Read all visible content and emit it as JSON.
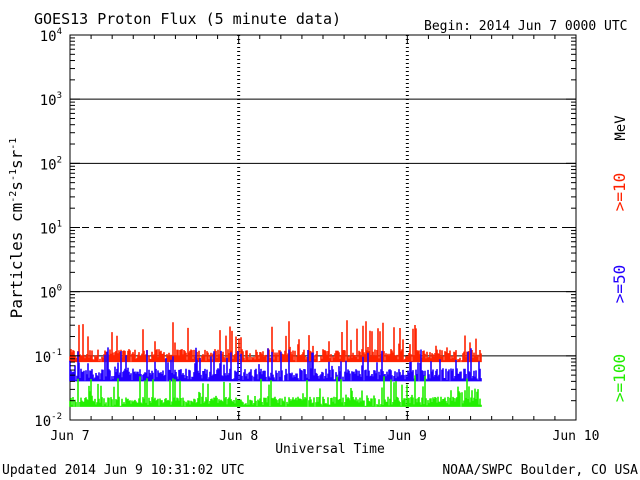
{
  "header": {
    "title": "GOES13 Proton Flux (5 minute data)",
    "begin": "Begin: 2014 Jun 7 0000 UTC"
  },
  "footer": {
    "updated": "Updated 2014 Jun  9 10:31:02 UTC",
    "credit": "NOAA/SWPC Boulder, CO USA"
  },
  "legend": {
    "unit": "MeV",
    "entries": [
      {
        "label": ">=10",
        "color": "#ff2200"
      },
      {
        "label": ">=50",
        "color": "#2200ff"
      },
      {
        "label": ">=100",
        "color": "#22ee00"
      }
    ]
  },
  "chart_data": {
    "type": "line",
    "xlabel": "Universal Time",
    "ylabel_parts": {
      "base": "Particles cm",
      "e1": "-2",
      "mid1": "s",
      "e2": "-1",
      "mid2": "sr",
      "e3": "-1"
    },
    "x_ticks": [
      "Jun 7",
      "Jun 8",
      "Jun 9",
      "Jun 10"
    ],
    "x_domain_days": [
      0,
      3
    ],
    "y_scale": "log",
    "ylim": [
      0.01,
      10000
    ],
    "y_ticks": [
      {
        "base": "10",
        "exp": "-2",
        "value": 0.01
      },
      {
        "base": "10",
        "exp": "-1",
        "value": 0.1
      },
      {
        "base": "10",
        "exp": "0",
        "value": 1
      },
      {
        "base": "10",
        "exp": "1",
        "value": 10
      },
      {
        "base": "10",
        "exp": "2",
        "value": 100
      },
      {
        "base": "10",
        "exp": "3",
        "value": 1000
      },
      {
        "base": "10",
        "exp": "4",
        "value": 10000
      }
    ],
    "reference_lines": [
      {
        "value": 0.1,
        "style": "solid"
      },
      {
        "value": 1,
        "style": "solid"
      },
      {
        "value": 10,
        "style": "dashed"
      },
      {
        "value": 100,
        "style": "solid"
      },
      {
        "value": 1000,
        "style": "solid"
      }
    ],
    "series": [
      {
        "name": ">=10",
        "color": "#ff2200",
        "x_end_days": 2.44,
        "floor": 0.08,
        "typical": 0.12,
        "peak": 0.36
      },
      {
        "name": ">=50",
        "color": "#2200ff",
        "x_end_days": 2.44,
        "floor": 0.04,
        "typical": 0.06,
        "peak": 0.14
      },
      {
        "name": ">=100",
        "color": "#22ee00",
        "x_end_days": 2.44,
        "floor": 0.016,
        "typical": 0.022,
        "peak": 0.05
      }
    ]
  }
}
